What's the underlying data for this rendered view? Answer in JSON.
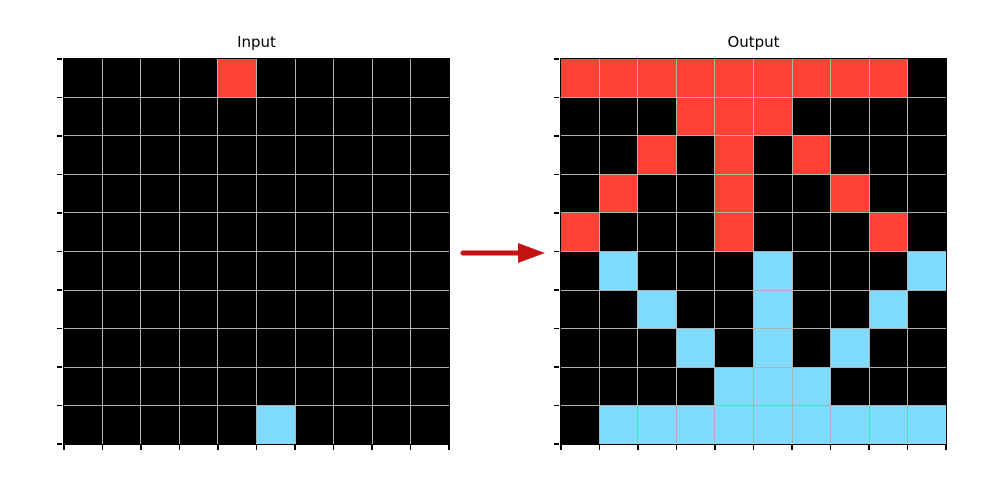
{
  "figure": {
    "background": "#ffffff",
    "grid_line_color": "#b0b0b0",
    "spine_color": "#000000",
    "tick_color": "#000000"
  },
  "palette": {
    "0": "#000000",
    "2": "#ff4136",
    "8": "#7fdbff"
  },
  "arrow": {
    "color": "#c41212",
    "direction": "right"
  },
  "panels": [
    {
      "title": "Input",
      "grid_rows": 10,
      "grid_cols": 10,
      "grid": [
        [
          0,
          0,
          0,
          0,
          2,
          0,
          0,
          0,
          0,
          0
        ],
        [
          0,
          0,
          0,
          0,
          0,
          0,
          0,
          0,
          0,
          0
        ],
        [
          0,
          0,
          0,
          0,
          0,
          0,
          0,
          0,
          0,
          0
        ],
        [
          0,
          0,
          0,
          0,
          0,
          0,
          0,
          0,
          0,
          0
        ],
        [
          0,
          0,
          0,
          0,
          0,
          0,
          0,
          0,
          0,
          0
        ],
        [
          0,
          0,
          0,
          0,
          0,
          0,
          0,
          0,
          0,
          0
        ],
        [
          0,
          0,
          0,
          0,
          0,
          0,
          0,
          0,
          0,
          0
        ],
        [
          0,
          0,
          0,
          0,
          0,
          0,
          0,
          0,
          0,
          0
        ],
        [
          0,
          0,
          0,
          0,
          0,
          0,
          0,
          0,
          0,
          0
        ],
        [
          0,
          0,
          0,
          0,
          0,
          8,
          0,
          0,
          0,
          0
        ]
      ]
    },
    {
      "title": "Output",
      "grid_rows": 10,
      "grid_cols": 10,
      "grid": [
        [
          2,
          2,
          2,
          2,
          2,
          2,
          2,
          2,
          2,
          0
        ],
        [
          0,
          0,
          0,
          2,
          2,
          2,
          0,
          0,
          0,
          0
        ],
        [
          0,
          0,
          2,
          0,
          2,
          0,
          2,
          0,
          0,
          0
        ],
        [
          0,
          2,
          0,
          0,
          2,
          0,
          0,
          2,
          0,
          0
        ],
        [
          2,
          0,
          0,
          0,
          2,
          0,
          0,
          0,
          2,
          0
        ],
        [
          0,
          8,
          0,
          0,
          0,
          8,
          0,
          0,
          0,
          8
        ],
        [
          0,
          0,
          8,
          0,
          0,
          8,
          0,
          0,
          8,
          0
        ],
        [
          0,
          0,
          0,
          8,
          0,
          8,
          0,
          8,
          0,
          0
        ],
        [
          0,
          0,
          0,
          0,
          8,
          8,
          8,
          0,
          0,
          0
        ],
        [
          0,
          8,
          8,
          8,
          8,
          8,
          8,
          8,
          8,
          8
        ]
      ]
    }
  ]
}
